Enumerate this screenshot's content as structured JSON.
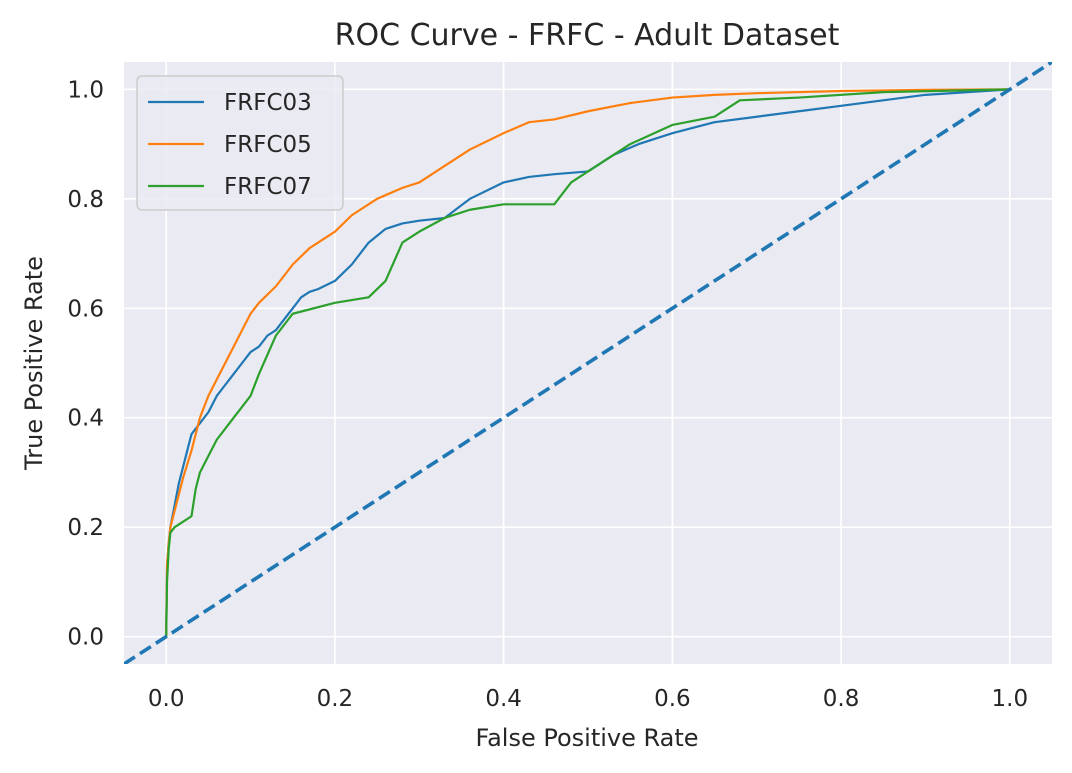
{
  "chart_data": {
    "type": "line",
    "title": "ROC Curve - FRFC - Adult Dataset",
    "xlabel": "False Positive Rate",
    "ylabel": "True Positive Rate",
    "xlim": [
      -0.05,
      1.05
    ],
    "ylim": [
      -0.05,
      1.05
    ],
    "xticks": [
      0.0,
      0.2,
      0.4,
      0.6,
      0.8,
      1.0
    ],
    "yticks": [
      0.0,
      0.2,
      0.4,
      0.6,
      0.8,
      1.0
    ],
    "xtick_labels": [
      "0.0",
      "0.2",
      "0.4",
      "0.6",
      "0.8",
      "1.0"
    ],
    "ytick_labels": [
      "0.0",
      "0.2",
      "0.4",
      "0.6",
      "0.8",
      "1.0"
    ],
    "grid": true,
    "background": "#EAEAF2",
    "legend": "top-left",
    "series": [
      {
        "name": "FRFC03",
        "color": "#1f77b4",
        "x": [
          0.0,
          0.001,
          0.003,
          0.005,
          0.01,
          0.015,
          0.02,
          0.025,
          0.03,
          0.04,
          0.05,
          0.06,
          0.07,
          0.08,
          0.09,
          0.1,
          0.11,
          0.12,
          0.13,
          0.14,
          0.15,
          0.16,
          0.17,
          0.18,
          0.2,
          0.22,
          0.24,
          0.26,
          0.28,
          0.3,
          0.33,
          0.36,
          0.4,
          0.43,
          0.46,
          0.5,
          0.53,
          0.56,
          0.6,
          0.65,
          0.7,
          0.75,
          0.8,
          0.85,
          0.9,
          0.95,
          1.0
        ],
        "y": [
          0.0,
          0.13,
          0.17,
          0.2,
          0.24,
          0.28,
          0.31,
          0.34,
          0.37,
          0.39,
          0.41,
          0.44,
          0.46,
          0.48,
          0.5,
          0.52,
          0.53,
          0.55,
          0.56,
          0.58,
          0.6,
          0.62,
          0.63,
          0.635,
          0.65,
          0.68,
          0.72,
          0.745,
          0.755,
          0.76,
          0.765,
          0.8,
          0.83,
          0.84,
          0.845,
          0.85,
          0.88,
          0.9,
          0.92,
          0.94,
          0.95,
          0.96,
          0.97,
          0.98,
          0.99,
          0.995,
          1.0
        ]
      },
      {
        "name": "FRFC05",
        "color": "#ff7f0e",
        "x": [
          0.0,
          0.001,
          0.003,
          0.005,
          0.01,
          0.015,
          0.02,
          0.03,
          0.04,
          0.05,
          0.06,
          0.07,
          0.08,
          0.09,
          0.1,
          0.11,
          0.13,
          0.15,
          0.17,
          0.2,
          0.22,
          0.25,
          0.28,
          0.3,
          0.33,
          0.36,
          0.4,
          0.43,
          0.46,
          0.5,
          0.55,
          0.6,
          0.65,
          0.7,
          0.8,
          0.9,
          1.0
        ],
        "y": [
          0.0,
          0.13,
          0.17,
          0.2,
          0.23,
          0.26,
          0.29,
          0.34,
          0.4,
          0.44,
          0.47,
          0.5,
          0.53,
          0.56,
          0.59,
          0.61,
          0.64,
          0.68,
          0.71,
          0.74,
          0.77,
          0.8,
          0.82,
          0.83,
          0.86,
          0.89,
          0.92,
          0.94,
          0.945,
          0.96,
          0.975,
          0.985,
          0.99,
          0.993,
          0.997,
          0.999,
          1.0
        ]
      },
      {
        "name": "FRFC07",
        "color": "#2ca02c",
        "x": [
          0.0,
          0.001,
          0.003,
          0.005,
          0.01,
          0.02,
          0.03,
          0.035,
          0.04,
          0.05,
          0.06,
          0.07,
          0.08,
          0.09,
          0.1,
          0.11,
          0.13,
          0.15,
          0.2,
          0.24,
          0.26,
          0.28,
          0.3,
          0.33,
          0.36,
          0.4,
          0.43,
          0.46,
          0.48,
          0.5,
          0.55,
          0.6,
          0.65,
          0.68,
          0.75,
          0.85,
          1.0
        ],
        "y": [
          0.0,
          0.1,
          0.16,
          0.19,
          0.2,
          0.21,
          0.22,
          0.27,
          0.3,
          0.33,
          0.36,
          0.38,
          0.4,
          0.42,
          0.44,
          0.48,
          0.55,
          0.59,
          0.61,
          0.62,
          0.65,
          0.72,
          0.74,
          0.765,
          0.78,
          0.79,
          0.79,
          0.79,
          0.83,
          0.85,
          0.9,
          0.935,
          0.95,
          0.98,
          0.985,
          0.995,
          1.0
        ]
      },
      {
        "name": "",
        "color": "#1f77b4",
        "dashed": true,
        "x": [
          -0.05,
          1.05
        ],
        "y": [
          -0.05,
          1.05
        ]
      }
    ]
  }
}
